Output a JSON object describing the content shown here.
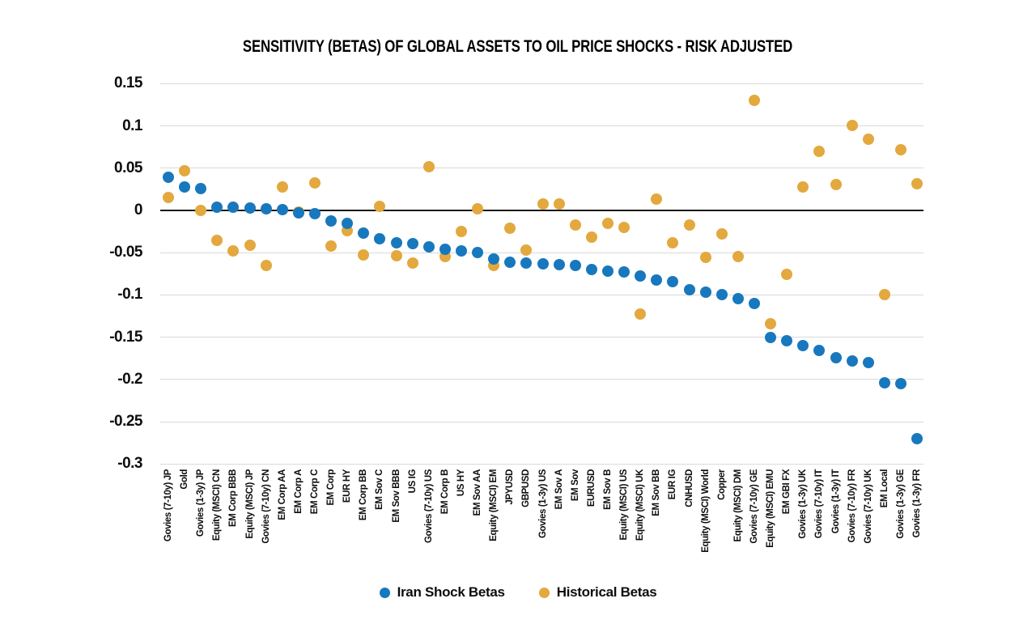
{
  "title": "SENSITIVITY (BETAS) OF GLOBAL ASSETS TO OIL PRICE SHOCKS - RISK ADJUSTED",
  "colors": {
    "iran_shock": "#1878BE",
    "historical": "#E3A83E",
    "gridline": "#D9D9D9",
    "zero_line": "#1A1A1A",
    "text": "#0D0D0D"
  },
  "legend": {
    "items": [
      {
        "label": "Iran Shock Betas",
        "color": "#1878BE",
        "marker": "circle-icon"
      },
      {
        "label": "Historical Betas",
        "color": "#E3A83E",
        "marker": "circle-icon"
      }
    ],
    "position": "bottom"
  },
  "chart_data": {
    "type": "scatter",
    "title": "SENSITIVITY (BETAS) OF GLOBAL ASSETS TO OIL PRICE SHOCKS - RISK ADJUSTED",
    "xlabel": "",
    "ylabel": "",
    "ylim": [
      -0.3,
      0.15
    ],
    "yticks": [
      0.15,
      0.1,
      0.05,
      0,
      -0.05,
      -0.1,
      -0.15,
      -0.2,
      -0.25,
      -0.3
    ],
    "grid": "horizontal",
    "zero_line": true,
    "legend_position": "bottom",
    "categories": [
      "Govies (7-10y) JP",
      "Gold",
      "Govies (1-3y) JP",
      "Equity (MSCI) CN",
      "EM Corp BBB",
      "Equity (MSCI) JP",
      "Govies (7-10y) CN",
      "EM Corp AA",
      "EM Corp A",
      "EM Corp C",
      "EM Corp",
      "EUR HY",
      "EM Corp BB",
      "EM Sov C",
      "EM Sov BBB",
      "US IG",
      "Govies (7-10y) US",
      "EM Corp B",
      "US HY",
      "EM Sov AA",
      "Equity (MSCI) EM",
      "JPYUSD",
      "GBPUSD",
      "Govies (1-3y) US",
      "EM Sov A",
      "EM Sov",
      "EURUSD",
      "EM Sov B",
      "Equity (MSCI) US",
      "Equity (MSCI) UK",
      "EM Sov BB",
      "EUR IG",
      "CNHUSD",
      "Equity (MSCI) World",
      "Copper",
      "Equity (MSCI) DM",
      "Govies (7-10y) GE",
      "Equity (MSCI) EMU",
      "EM GBI FX",
      "Govies (1-3y) UK",
      "Govies (7-10y) IT",
      "Govies (1-3y) IT",
      "Govies (7-10y) FR",
      "Govies (7-10y) UK",
      "EM Local",
      "Govies (1-3y) GE",
      "Govies (1-3y) FR"
    ],
    "series": [
      {
        "name": "Iran Shock Betas",
        "color": "#1878BE",
        "values": [
          0.039,
          0.028,
          0.026,
          0.004,
          0.004,
          0.003,
          0.002,
          0.001,
          -0.003,
          -0.004,
          -0.012,
          -0.015,
          -0.027,
          -0.034,
          -0.038,
          -0.039,
          -0.043,
          -0.046,
          -0.048,
          -0.05,
          -0.057,
          -0.061,
          -0.062,
          -0.063,
          -0.064,
          -0.065,
          -0.07,
          -0.072,
          -0.073,
          -0.078,
          -0.082,
          -0.084,
          -0.094,
          -0.097,
          -0.1,
          -0.104,
          -0.11,
          -0.15,
          -0.154,
          -0.16,
          -0.166,
          -0.174,
          -0.178,
          -0.18,
          -0.204,
          -0.205,
          -0.27
        ]
      },
      {
        "name": "Historical Betas",
        "color": "#E3A83E",
        "values": [
          0.015,
          0.047,
          0.0,
          -0.035,
          -0.048,
          -0.041,
          -0.065,
          0.028,
          -0.002,
          0.033,
          -0.042,
          -0.024,
          -0.053,
          0.005,
          -0.054,
          -0.062,
          0.052,
          -0.055,
          -0.025,
          0.002,
          -0.065,
          -0.021,
          -0.047,
          0.008,
          0.008,
          -0.017,
          -0.032,
          -0.015,
          -0.02,
          -0.123,
          0.013,
          -0.038,
          -0.017,
          -0.056,
          -0.028,
          -0.055,
          0.13,
          -0.134,
          -0.076,
          0.028,
          0.07,
          0.031,
          0.101,
          0.084,
          -0.1,
          0.072,
          0.032
        ]
      }
    ]
  }
}
